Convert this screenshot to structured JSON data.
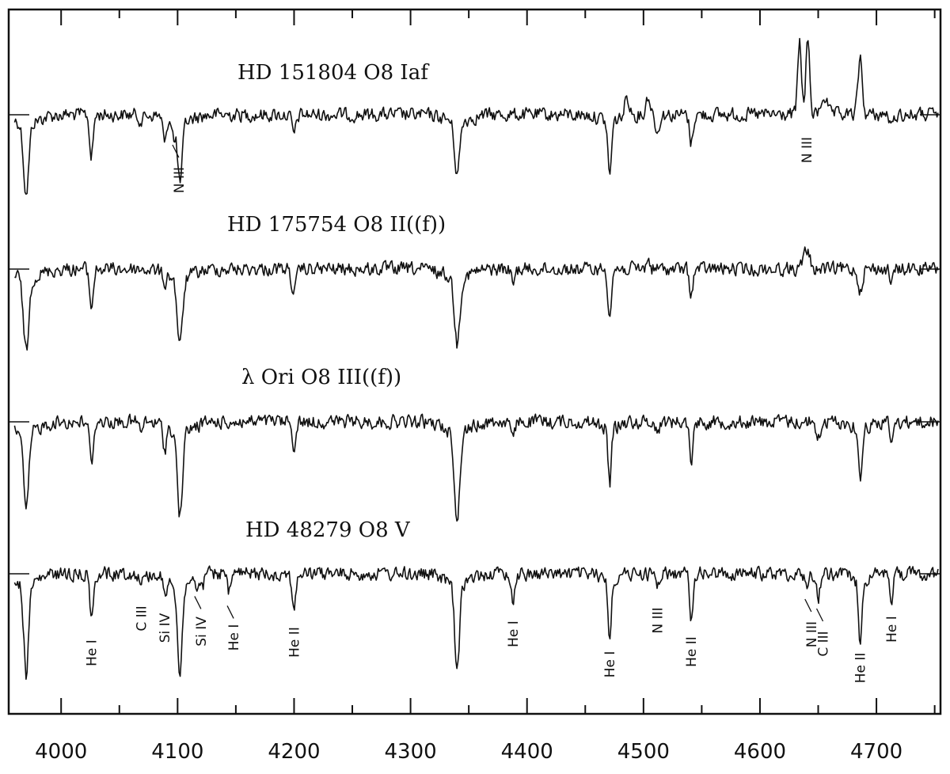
{
  "chart_data": {
    "type": "line",
    "title": "",
    "xlabel": "",
    "ylabel": "",
    "xlim": [
      3955,
      4755
    ],
    "grid": false,
    "x_ticks": [
      4000,
      4100,
      4200,
      4300,
      4400,
      4500,
      4600,
      4700
    ],
    "x_tick_labels": [
      "4000",
      "4100",
      "4200",
      "4300",
      "4400",
      "4500",
      "4600",
      "4700"
    ],
    "x_minor_step": 50,
    "series": [
      {
        "name": "HD 151804 O8 Iaf",
        "label": "HD 151804   O8 Iaf",
        "lines": [
          {
            "w": 3970,
            "depth": 0.75,
            "width": 2.2
          },
          {
            "w": 4026,
            "depth": 0.45,
            "width": 1.5
          },
          {
            "w": 4069,
            "depth": 0.06,
            "width": 2.0
          },
          {
            "w": 4089,
            "depth": 0.3,
            "width": 1.3
          },
          {
            "w": 4097,
            "depth": 0.2,
            "width": 1.0
          },
          {
            "w": 4102,
            "depth": 0.65,
            "width": 2.0
          },
          {
            "w": 4200,
            "depth": 0.2,
            "width": 1.8
          },
          {
            "w": 4340,
            "depth": 0.55,
            "width": 2.2
          },
          {
            "w": 4471,
            "depth": 0.55,
            "width": 1.6
          },
          {
            "w": 4512,
            "depth": 0.2,
            "width": 1.5
          },
          {
            "w": 4541,
            "depth": 0.3,
            "width": 1.5
          },
          {
            "w": 4713,
            "depth": 0.15,
            "width": 1.4
          },
          {
            "w": 4486,
            "depth": -0.2,
            "width": 2.0
          },
          {
            "w": 4504,
            "depth": -0.2,
            "width": 1.8
          },
          {
            "w": 4634,
            "depth": -0.75,
            "width": 1.6
          },
          {
            "w": 4641,
            "depth": -0.8,
            "width": 1.6
          },
          {
            "w": 4655,
            "depth": -0.2,
            "width": 2.5
          },
          {
            "w": 4686,
            "depth": -0.6,
            "width": 1.8
          }
        ]
      },
      {
        "name": "HD 175754 O8 II((f))",
        "label": "HD 175754   O8 II((f))",
        "lines": [
          {
            "w": 3970,
            "depth": 0.78,
            "width": 2.3
          },
          {
            "w": 4026,
            "depth": 0.4,
            "width": 1.6
          },
          {
            "w": 4089,
            "depth": 0.1,
            "width": 1.5
          },
          {
            "w": 4102,
            "depth": 0.72,
            "width": 2.3
          },
          {
            "w": 4200,
            "depth": 0.25,
            "width": 2.0
          },
          {
            "w": 4340,
            "depth": 0.7,
            "width": 2.3
          },
          {
            "w": 4388,
            "depth": 0.15,
            "width": 1.6
          },
          {
            "w": 4471,
            "depth": 0.45,
            "width": 1.6
          },
          {
            "w": 4541,
            "depth": 0.25,
            "width": 1.6
          },
          {
            "w": 4686,
            "depth": 0.22,
            "width": 1.8
          },
          {
            "w": 4713,
            "depth": 0.15,
            "width": 1.5
          },
          {
            "w": 4640,
            "depth": -0.2,
            "width": 2.5
          },
          {
            "w": 4504,
            "depth": -0.1,
            "width": 1.5
          }
        ]
      },
      {
        "name": "λ Ori O8 III((f))",
        "label": "λ Ori   O8 III((f))",
        "lines": [
          {
            "w": 3970,
            "depth": 0.85,
            "width": 2.2
          },
          {
            "w": 4026,
            "depth": 0.45,
            "width": 1.5
          },
          {
            "w": 4069,
            "depth": 0.1,
            "width": 1.6
          },
          {
            "w": 4089,
            "depth": 0.25,
            "width": 1.3
          },
          {
            "w": 4102,
            "depth": 0.88,
            "width": 2.2
          },
          {
            "w": 4200,
            "depth": 0.25,
            "width": 1.8
          },
          {
            "w": 4340,
            "depth": 0.95,
            "width": 2.2
          },
          {
            "w": 4388,
            "depth": 0.2,
            "width": 1.5
          },
          {
            "w": 4471,
            "depth": 0.58,
            "width": 1.4
          },
          {
            "w": 4512,
            "depth": 0.1,
            "width": 1.5
          },
          {
            "w": 4541,
            "depth": 0.4,
            "width": 1.5
          },
          {
            "w": 4650,
            "depth": 0.18,
            "width": 1.8
          },
          {
            "w": 4686,
            "depth": 0.55,
            "width": 1.5
          },
          {
            "w": 4713,
            "depth": 0.25,
            "width": 1.3
          }
        ]
      },
      {
        "name": "HD 48279 O8 V",
        "label": "HD 48279   O8 V",
        "lines": [
          {
            "w": 3970,
            "depth": 0.95,
            "width": 2.0
          },
          {
            "w": 4026,
            "depth": 0.5,
            "width": 1.4
          },
          {
            "w": 4069,
            "depth": 0.1,
            "width": 1.5
          },
          {
            "w": 4089,
            "depth": 0.2,
            "width": 1.3
          },
          {
            "w": 4102,
            "depth": 0.95,
            "width": 2.0
          },
          {
            "w": 4116,
            "depth": 0.12,
            "width": 1.3
          },
          {
            "w": 4121,
            "depth": 0.15,
            "width": 1.3
          },
          {
            "w": 4144,
            "depth": 0.22,
            "width": 1.4
          },
          {
            "w": 4200,
            "depth": 0.35,
            "width": 1.7
          },
          {
            "w": 4340,
            "depth": 0.95,
            "width": 2.0
          },
          {
            "w": 4388,
            "depth": 0.3,
            "width": 1.4
          },
          {
            "w": 4471,
            "depth": 0.62,
            "width": 1.3
          },
          {
            "w": 4512,
            "depth": 0.12,
            "width": 1.4
          },
          {
            "w": 4541,
            "depth": 0.45,
            "width": 1.4
          },
          {
            "w": 4640,
            "depth": 0.15,
            "width": 1.4
          },
          {
            "w": 4650,
            "depth": 0.25,
            "width": 1.5
          },
          {
            "w": 4686,
            "depth": 0.62,
            "width": 1.4
          },
          {
            "w": 4713,
            "depth": 0.25,
            "width": 1.3
          }
        ]
      }
    ],
    "annotations": [
      {
        "series": 0,
        "text": "N III",
        "w": 4097,
        "rotate": true,
        "leader": true
      },
      {
        "series": 0,
        "text": "N III",
        "w": 4640,
        "rotate": true,
        "leader": false
      },
      {
        "series": 3,
        "text": "He I",
        "w": 4026,
        "rotate": true,
        "leader": false
      },
      {
        "series": 3,
        "text": "C III",
        "w": 4069,
        "rotate": true,
        "leader": false
      },
      {
        "series": 3,
        "text": "Si IV",
        "w": 4089,
        "rotate": true,
        "leader": false
      },
      {
        "series": 3,
        "text": "Si IV",
        "w": 4116,
        "rotate": true,
        "leader": true
      },
      {
        "series": 3,
        "text": "He I",
        "w": 4144,
        "rotate": true,
        "leader": true
      },
      {
        "series": 3,
        "text": "He II",
        "w": 4200,
        "rotate": true,
        "leader": false
      },
      {
        "series": 3,
        "text": "He I",
        "w": 4388,
        "rotate": true,
        "leader": false
      },
      {
        "series": 3,
        "text": "He I",
        "w": 4471,
        "rotate": true,
        "leader": false
      },
      {
        "series": 3,
        "text": "N III",
        "w": 4512,
        "rotate": true,
        "leader": false
      },
      {
        "series": 3,
        "text": "He II",
        "w": 4541,
        "rotate": true,
        "leader": false
      },
      {
        "series": 3,
        "text": "N III",
        "w": 4640,
        "rotate": true,
        "leader": true
      },
      {
        "series": 3,
        "text": "C III",
        "w": 4650,
        "rotate": true,
        "leader": true
      },
      {
        "series": 3,
        "text": "He II",
        "w": 4686,
        "rotate": true,
        "leader": false
      },
      {
        "series": 3,
        "text": "He I",
        "w": 4713,
        "rotate": true,
        "leader": false
      }
    ]
  }
}
